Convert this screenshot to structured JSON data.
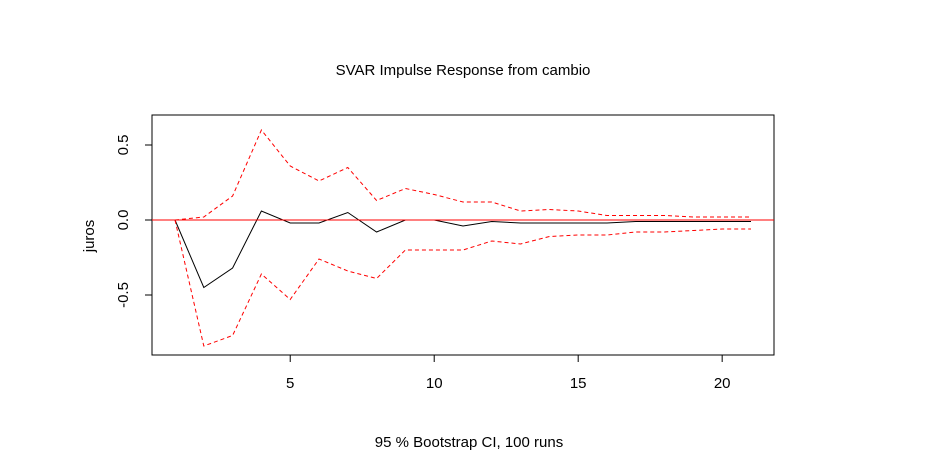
{
  "chart_data": {
    "type": "line",
    "title": "SVAR Impulse Response from cambio",
    "xlabel": "95 % Bootstrap CI,  100 runs",
    "ylabel": "juros",
    "xlim": [
      0.2,
      21.8
    ],
    "ylim": [
      -0.9,
      0.7
    ],
    "xticks": [
      5,
      10,
      15,
      20
    ],
    "yticks": [
      -0.5,
      0.0,
      0.5
    ],
    "xtick_labels": [
      "5",
      "10",
      "15",
      "20"
    ],
    "ytick_labels": [
      "-0.5",
      "0.0",
      "0.5"
    ],
    "grid": false,
    "x": [
      1,
      2,
      3,
      4,
      5,
      6,
      7,
      8,
      9,
      10,
      11,
      12,
      13,
      14,
      15,
      16,
      17,
      18,
      19,
      20,
      21
    ],
    "series": [
      {
        "role": "response",
        "color": "#000000",
        "dash": "solid",
        "values": [
          0.0,
          -0.45,
          -0.32,
          0.06,
          -0.02,
          -0.02,
          0.05,
          -0.08,
          0.0,
          0.0,
          -0.04,
          -0.01,
          -0.02,
          -0.02,
          -0.02,
          -0.02,
          -0.01,
          -0.01,
          -0.01,
          -0.01,
          -0.01
        ]
      },
      {
        "role": "upper_ci",
        "color": "#ff0000",
        "dash": "dashed",
        "values": [
          0.0,
          0.02,
          0.16,
          0.6,
          0.36,
          0.26,
          0.35,
          0.13,
          0.21,
          0.17,
          0.12,
          0.12,
          0.06,
          0.07,
          0.06,
          0.03,
          0.03,
          0.03,
          0.02,
          0.02,
          0.02
        ]
      },
      {
        "role": "lower_ci",
        "color": "#ff0000",
        "dash": "dashed",
        "values": [
          0.0,
          -0.84,
          -0.77,
          -0.36,
          -0.53,
          -0.26,
          -0.34,
          -0.39,
          -0.2,
          -0.2,
          -0.2,
          -0.14,
          -0.16,
          -0.11,
          -0.1,
          -0.1,
          -0.08,
          -0.08,
          -0.07,
          -0.06,
          -0.06
        ]
      }
    ],
    "reference_line": {
      "y": 0.0,
      "color": "#ff0000"
    }
  }
}
